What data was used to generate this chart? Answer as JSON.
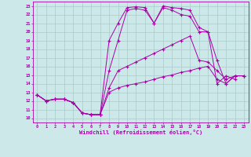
{
  "xlabel": "Windchill (Refroidissement éolien,°C)",
  "xlim": [
    -0.5,
    23.5
  ],
  "ylim": [
    9.5,
    23.5
  ],
  "yticks": [
    10,
    11,
    12,
    13,
    14,
    15,
    16,
    17,
    18,
    19,
    20,
    21,
    22,
    23
  ],
  "xticks": [
    0,
    1,
    2,
    3,
    4,
    5,
    6,
    7,
    8,
    9,
    10,
    11,
    12,
    13,
    14,
    15,
    16,
    17,
    18,
    19,
    20,
    21,
    22,
    23
  ],
  "line_color": "#aa00aa",
  "bg_color": "#cce8e8",
  "grid_color": "#aacccc",
  "lines": [
    [
      12.7,
      12.0,
      12.2,
      12.2,
      11.8,
      10.6,
      10.4,
      10.4,
      19.0,
      21.0,
      22.8,
      22.9,
      22.8,
      21.0,
      22.8,
      22.5,
      22.0,
      21.8,
      20.0,
      20.0,
      14.0,
      14.9,
      14.5,
      null
    ],
    [
      12.7,
      12.0,
      12.2,
      12.2,
      11.8,
      10.6,
      10.4,
      10.4,
      15.5,
      19.0,
      22.5,
      22.7,
      22.5,
      21.0,
      23.0,
      22.8,
      22.7,
      22.5,
      20.5,
      20.0,
      16.7,
      14.0,
      14.9,
      14.9
    ],
    [
      12.7,
      12.0,
      12.2,
      12.2,
      11.8,
      10.6,
      10.4,
      10.4,
      13.5,
      15.5,
      16.0,
      16.5,
      17.0,
      17.5,
      18.0,
      18.5,
      19.0,
      19.5,
      16.7,
      16.5,
      15.5,
      14.5,
      14.9,
      14.9
    ],
    [
      12.7,
      12.0,
      12.2,
      12.2,
      11.8,
      10.6,
      10.4,
      10.4,
      13.0,
      13.5,
      13.8,
      14.0,
      14.2,
      14.5,
      14.8,
      15.0,
      15.3,
      15.5,
      15.8,
      16.0,
      14.5,
      14.0,
      14.9,
      14.9
    ]
  ]
}
